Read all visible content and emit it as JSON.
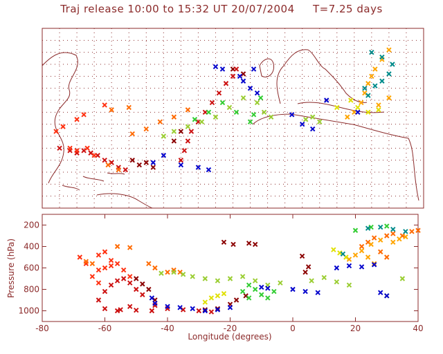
{
  "title": "Traj release 10:00 to 15:32 UT 20/07/2004     T=7.25 days",
  "colors": {
    "axis": "#8b2a2a",
    "grid": "#8b2a2a",
    "coast": "#8b2a2a",
    "palette": [
      "#8b0000",
      "#cc1010",
      "#ff3010",
      "#ff6a00",
      "#ffa500",
      "#e0e000",
      "#9acd32",
      "#32cd32",
      "#0000cc",
      "#008b8b"
    ]
  },
  "chart_data": [
    {
      "type": "scatter",
      "panel": "map",
      "xlim": [
        -70,
        40
      ],
      "ylim": [
        0,
        75
      ],
      "grid": true,
      "marker": "x",
      "series": [
        {
          "color": "#8b0000",
          "points": [
            [
              -42,
              18
            ],
            [
              -40,
              19
            ],
            [
              -38,
              17
            ],
            [
              -44,
              20
            ],
            [
              -32,
              28
            ],
            [
              -30,
              32
            ],
            [
              -12,
              56
            ],
            [
              -15,
              58
            ]
          ]
        },
        {
          "color": "#cc1010",
          "points": [
            [
              -65,
              25
            ],
            [
              -62,
              24
            ],
            [
              -60,
              23
            ],
            [
              -58,
              24
            ],
            [
              -56,
              23
            ],
            [
              -54,
              22
            ],
            [
              -52,
              20
            ],
            [
              -50,
              19
            ],
            [
              -48,
              17
            ],
            [
              -46,
              16
            ],
            [
              -30,
              20
            ],
            [
              -29,
              24
            ],
            [
              -28,
              28
            ],
            [
              -27,
              32
            ],
            [
              -25,
              36
            ],
            [
              -23,
              40
            ],
            [
              -21,
              44
            ],
            [
              -19,
              48
            ],
            [
              -17,
              52
            ],
            [
              -15,
              55
            ],
            [
              -14,
              58
            ]
          ]
        },
        {
          "color": "#ff3010",
          "points": [
            [
              -62,
              25
            ],
            [
              -60,
              24
            ],
            [
              -57,
              25
            ],
            [
              -55,
              22
            ],
            [
              -66,
              32
            ],
            [
              -64,
              34
            ],
            [
              -60,
              37
            ],
            [
              -58,
              39
            ],
            [
              -52,
              43
            ]
          ]
        },
        {
          "color": "#ff6a00",
          "points": [
            [
              -44,
              31
            ],
            [
              -40,
              33
            ],
            [
              -36,
              36
            ],
            [
              -32,
              38
            ],
            [
              -28,
              41
            ],
            [
              -48,
              16
            ],
            [
              -51,
              18
            ],
            [
              -50,
              41
            ],
            [
              -45,
              42
            ]
          ]
        },
        {
          "color": "#ffa500",
          "points": [
            [
              20,
              40
            ],
            [
              22,
              44
            ],
            [
              23,
              48
            ],
            [
              24,
              52
            ],
            [
              25,
              55
            ],
            [
              26,
              58
            ],
            [
              28,
              62
            ],
            [
              30,
              66
            ],
            [
              18,
              38
            ],
            [
              27,
              43
            ],
            [
              30,
              46
            ]
          ]
        },
        {
          "color": "#e0e000",
          "points": [
            [
              21,
              42
            ],
            [
              24,
              40
            ],
            [
              27,
              41
            ],
            [
              19,
              45
            ],
            [
              15,
              42
            ]
          ]
        },
        {
          "color": "#9acd32",
          "points": [
            [
              -35,
              30
            ],
            [
              -32,
              32
            ],
            [
              -28,
              34
            ],
            [
              -24,
              36
            ],
            [
              -20,
              38
            ],
            [
              -16,
              42
            ],
            [
              -12,
              46
            ],
            [
              -8,
              44
            ],
            [
              -6,
              40
            ],
            [
              -4,
              38
            ],
            [
              6,
              37
            ],
            [
              8,
              38
            ],
            [
              10,
              36
            ]
          ]
        },
        {
          "color": "#32cd32",
          "points": [
            [
              -26,
              37
            ],
            [
              -22,
              40
            ],
            [
              -18,
              44
            ],
            [
              -14,
              40
            ],
            [
              -10,
              36
            ],
            [
              -9,
              39
            ],
            [
              -7,
              46
            ]
          ]
        },
        {
          "color": "#0000cc",
          "points": [
            [
              -12,
              53
            ],
            [
              -10,
              50
            ],
            [
              -8,
              48
            ],
            [
              -13,
              55
            ],
            [
              -9,
              58
            ],
            [
              2,
              39
            ],
            [
              5,
              35
            ],
            [
              8,
              33
            ],
            [
              -35,
              22
            ],
            [
              -30,
              18
            ],
            [
              -25,
              17
            ],
            [
              -22,
              16
            ],
            [
              -38,
              19
            ],
            [
              -20,
              59
            ],
            [
              -18,
              58
            ],
            [
              12,
              45
            ],
            [
              21,
              40
            ]
          ]
        },
        {
          "color": "#008b8b",
          "points": [
            [
              23,
              50
            ],
            [
              26,
              51
            ],
            [
              28,
              53
            ],
            [
              30,
              56
            ],
            [
              31,
              60
            ],
            [
              28,
              63
            ],
            [
              25,
              65
            ],
            [
              24,
              47
            ]
          ]
        }
      ]
    },
    {
      "type": "scatter",
      "panel": "pressure",
      "xlabel": "Longitude  (degrees)",
      "ylabel": "Pressure  (hPa)",
      "xlim": [
        -80,
        40
      ],
      "ylim": [
        1100,
        100
      ],
      "xticks": [
        -80,
        -60,
        -40,
        -20,
        0,
        20,
        40
      ],
      "yticks": [
        200,
        400,
        600,
        800,
        1000
      ],
      "marker": "x",
      "series": [
        {
          "color": "#8b0000",
          "points": [
            [
              -50,
              700
            ],
            [
              -48,
              750
            ],
            [
              -46,
              800
            ],
            [
              -44,
              900
            ],
            [
              -22,
              360
            ],
            [
              -19,
              380
            ],
            [
              -14,
              370
            ],
            [
              -12,
              380
            ],
            [
              -15,
              860
            ],
            [
              -18,
              900
            ],
            [
              -20,
              940
            ],
            [
              -24,
              980
            ],
            [
              -28,
              990
            ],
            [
              3,
              490
            ],
            [
              5,
              590
            ],
            [
              4,
              640
            ]
          ]
        },
        {
          "color": "#cc1010",
          "points": [
            [
              -62,
              900
            ],
            [
              -60,
              820
            ],
            [
              -58,
              760
            ],
            [
              -56,
              720
            ],
            [
              -54,
              700
            ],
            [
              -52,
              740
            ],
            [
              -50,
              800
            ],
            [
              -48,
              850
            ],
            [
              -44,
              950
            ],
            [
              -40,
              980
            ],
            [
              -35,
              990
            ],
            [
              -30,
              1000
            ],
            [
              -26,
              1010
            ],
            [
              -60,
              980
            ],
            [
              -55,
              990
            ],
            [
              -50,
              995
            ],
            [
              -45,
              1000
            ],
            [
              -52,
              960
            ],
            [
              -56,
              1000
            ]
          ]
        },
        {
          "color": "#ff3010",
          "points": [
            [
              -68,
              500
            ],
            [
              -66,
              560
            ],
            [
              -62,
              620
            ],
            [
              -60,
              600
            ],
            [
              -58,
              580
            ],
            [
              -56,
              560
            ],
            [
              -54,
              620
            ],
            [
              -52,
              680
            ],
            [
              -60,
              450
            ],
            [
              -62,
              480
            ],
            [
              -58,
              530
            ],
            [
              -64,
              680
            ],
            [
              -62,
              740
            ]
          ]
        },
        {
          "color": "#ff6a00",
          "points": [
            [
              -66,
              540
            ],
            [
              -64,
              560
            ],
            [
              -56,
              400
            ],
            [
              -52,
              410
            ],
            [
              -46,
              560
            ],
            [
              -44,
              600
            ],
            [
              -40,
              640
            ],
            [
              -38,
              620
            ],
            [
              -36,
              640
            ],
            [
              22,
              400
            ],
            [
              24,
              360
            ],
            [
              26,
              320
            ],
            [
              30,
              300
            ],
            [
              32,
              280
            ],
            [
              35,
              300
            ],
            [
              38,
              260
            ],
            [
              40,
              250
            ],
            [
              28,
              450
            ],
            [
              30,
              500
            ]
          ]
        },
        {
          "color": "#ffa500",
          "points": [
            [
              18,
              520
            ],
            [
              20,
              480
            ],
            [
              22,
              440
            ],
            [
              25,
              380
            ],
            [
              28,
              340
            ],
            [
              32,
              360
            ],
            [
              34,
              330
            ],
            [
              36,
              310
            ],
            [
              24,
              500
            ],
            [
              26,
              560
            ]
          ]
        },
        {
          "color": "#e0e000",
          "points": [
            [
              -28,
              920
            ],
            [
              -26,
              880
            ],
            [
              -24,
              860
            ],
            [
              -22,
              840
            ],
            [
              13,
              430
            ],
            [
              15,
              460
            ],
            [
              17,
              500
            ]
          ]
        },
        {
          "color": "#9acd32",
          "points": [
            [
              -42,
              650
            ],
            [
              -38,
              640
            ],
            [
              -35,
              660
            ],
            [
              -32,
              680
            ],
            [
              -28,
              700
            ],
            [
              -24,
              720
            ],
            [
              -20,
              700
            ],
            [
              -16,
              680
            ],
            [
              -12,
              720
            ],
            [
              -8,
              760
            ],
            [
              -4,
              740
            ],
            [
              6,
              720
            ],
            [
              10,
              690
            ],
            [
              14,
              730
            ],
            [
              18,
              760
            ],
            [
              30,
              860
            ],
            [
              35,
              700
            ]
          ]
        },
        {
          "color": "#32cd32",
          "points": [
            [
              -14,
              760
            ],
            [
              -12,
              800
            ],
            [
              -10,
              850
            ],
            [
              -8,
              880
            ],
            [
              -14,
              880
            ],
            [
              -16,
              820
            ],
            [
              -6,
              820
            ],
            [
              20,
              250
            ],
            [
              25,
              220
            ],
            [
              30,
              210
            ]
          ]
        },
        {
          "color": "#0000cc",
          "points": [
            [
              -40,
              960
            ],
            [
              -36,
              970
            ],
            [
              -32,
              980
            ],
            [
              -28,
              1000
            ],
            [
              -24,
              990
            ],
            [
              -20,
              970
            ],
            [
              -10,
              780
            ],
            [
              -8,
              790
            ],
            [
              0,
              800
            ],
            [
              4,
              820
            ],
            [
              8,
              830
            ],
            [
              14,
              600
            ],
            [
              18,
              580
            ],
            [
              22,
              590
            ],
            [
              26,
              570
            ],
            [
              28,
              830
            ],
            [
              30,
              860
            ],
            [
              -45,
              880
            ],
            [
              -44,
              930
            ]
          ]
        },
        {
          "color": "#008b8b",
          "points": [
            [
              24,
              230
            ],
            [
              28,
              220
            ],
            [
              32,
              240
            ],
            [
              36,
              260
            ],
            [
              16,
              470
            ]
          ]
        }
      ]
    }
  ]
}
